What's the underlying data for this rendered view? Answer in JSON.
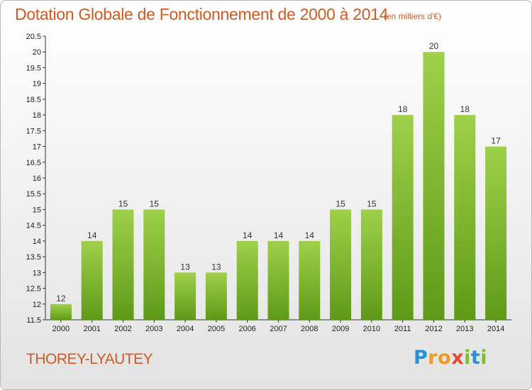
{
  "chart_data": {
    "type": "bar",
    "title": "Dotation Globale de Fonctionnement de 2000 à 2014",
    "subtitle": "(en milliers d'€)",
    "categories": [
      "2000",
      "2001",
      "2002",
      "2003",
      "2004",
      "2005",
      "2006",
      "2007",
      "2008",
      "2009",
      "2010",
      "2011",
      "2012",
      "2013",
      "2014"
    ],
    "values": [
      12,
      14,
      15,
      15,
      13,
      13,
      14,
      14,
      14,
      15,
      15,
      18,
      20,
      18,
      17
    ],
    "data_labels": [
      "12",
      "14",
      "15",
      "15",
      "13",
      "13",
      "14",
      "14",
      "14",
      "15",
      "15",
      "18",
      "20",
      "18",
      "17"
    ],
    "ylim": [
      11.5,
      20.5
    ],
    "yticks": [
      "11.5",
      "12",
      "12.5",
      "13",
      "13.5",
      "14",
      "14.5",
      "15",
      "15.5",
      "16",
      "16.5",
      "17",
      "17.5",
      "18",
      "18.5",
      "19",
      "19.5",
      "20",
      "20.5"
    ],
    "xlabel": "",
    "ylabel": "",
    "grid": false,
    "bar_color_top": "#9fd04a",
    "bar_color_bottom": "#5e9a18"
  },
  "footer": {
    "commune": "THOREY-LYAUTEY",
    "logo": [
      "P",
      "r",
      "o",
      "x",
      "i",
      "t",
      "i"
    ]
  }
}
